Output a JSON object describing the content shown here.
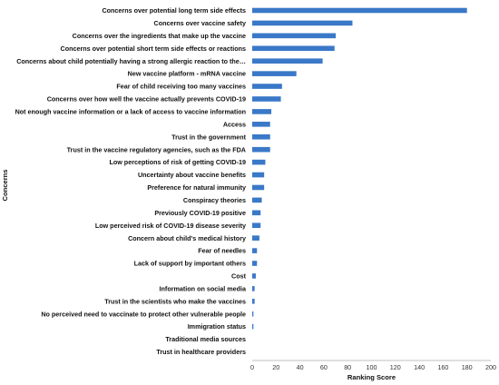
{
  "chart_data": {
    "type": "bar",
    "orientation": "horizontal",
    "xlabel": "Ranking Score",
    "ylabel": "Concerns",
    "xlim": [
      0,
      200
    ],
    "xticks": [
      0,
      20,
      40,
      60,
      80,
      100,
      120,
      140,
      160,
      180,
      200
    ],
    "grid": false,
    "bar_color": "#3a78c8",
    "categories": [
      "Concerns over potential long term side effects",
      "Concerns over vaccine safety",
      "Concerns over the ingredients that make up the vaccine",
      "Concerns over potential short term side effects or reactions",
      "Concerns about child potentially having a strong allergic reaction to the…",
      "New vaccine platform - mRNA vaccine",
      "Fear of child receiving too many vaccines",
      "Concerns over how well the vaccine actually prevents COVID-19",
      "Not enough vaccine information or a lack of access to vaccine information",
      "Access",
      "Trust in the government",
      "Trust in the vaccine regulatory agencies, such as the FDA",
      "Low perceptions of risk of getting COVID-19",
      "Uncertainty about vaccine benefits",
      "Preference for natural immunity",
      "Conspiracy theories",
      "Previously COVID-19 positive",
      "Low perceived risk of COVID-19 disease severity",
      "Concern about child's medical history",
      "Fear of needles",
      "Lack of support by important others",
      "Cost",
      "Information on social media",
      "Trust in the scientists who make the vaccines",
      "No perceived need to vaccinate to protect other vulnerable people",
      "Immigration status",
      "Traditional media sources",
      "Trust in healthcare providers"
    ],
    "values": [
      180,
      84,
      70,
      69,
      59,
      37,
      25,
      24,
      16,
      15,
      15,
      15,
      11,
      10,
      10,
      8,
      7,
      7,
      6,
      4,
      4,
      3,
      2,
      2,
      1,
      1,
      0,
      0
    ]
  }
}
